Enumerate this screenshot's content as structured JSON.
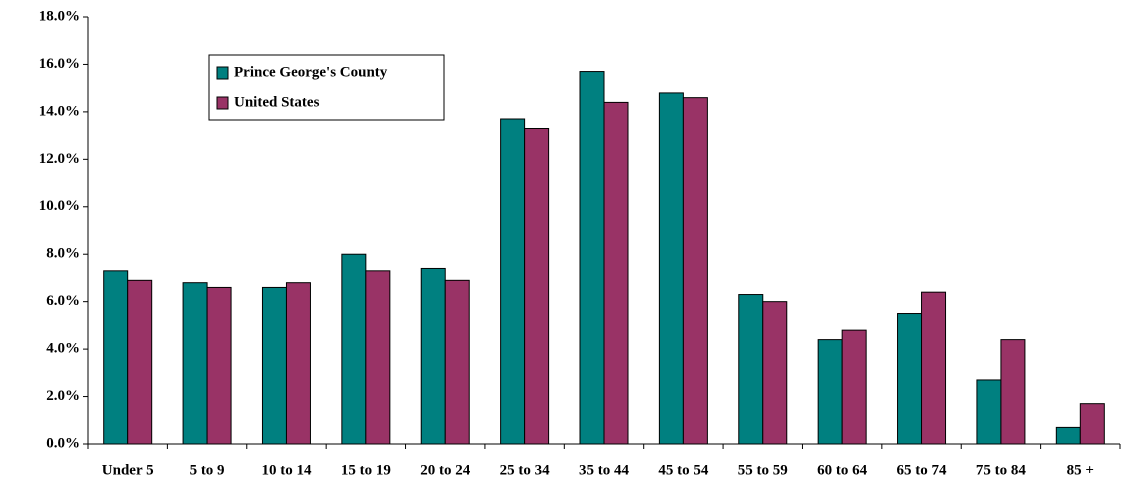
{
  "chart_data": {
    "type": "bar",
    "categories": [
      "Under 5",
      "5 to 9",
      "10 to 14",
      "15 to 19",
      "20 to 24",
      "25 to 34",
      "35 to 44",
      "45 to 54",
      "55 to 59",
      "60 to 64",
      "65 to 74",
      "75 to 84",
      "85 +"
    ],
    "series": [
      {
        "name": "Prince George's County",
        "color": "#008080",
        "values": [
          7.3,
          6.8,
          6.6,
          8.0,
          7.4,
          13.7,
          15.7,
          14.8,
          6.3,
          4.4,
          5.5,
          2.7,
          0.7
        ]
      },
      {
        "name": "United States",
        "color": "#993366",
        "values": [
          6.9,
          6.6,
          6.8,
          7.3,
          6.9,
          13.3,
          14.4,
          14.6,
          6.0,
          4.8,
          6.4,
          4.4,
          1.7
        ]
      }
    ],
    "ylim": [
      0,
      18
    ],
    "yticks": [
      {
        "value": 0,
        "label": "0.0%"
      },
      {
        "value": 2,
        "label": "2.0%"
      },
      {
        "value": 4,
        "label": "4.0%"
      },
      {
        "value": 6,
        "label": "6.0%"
      },
      {
        "value": 8,
        "label": "8.0%"
      },
      {
        "value": 10,
        "label": "10.0%"
      },
      {
        "value": 12,
        "label": "12.0%"
      },
      {
        "value": 14,
        "label": "14.0%"
      },
      {
        "value": 16,
        "label": "16.0%"
      },
      {
        "value": 18,
        "label": "18.0%"
      }
    ],
    "grid": false,
    "legend": "upper left"
  }
}
